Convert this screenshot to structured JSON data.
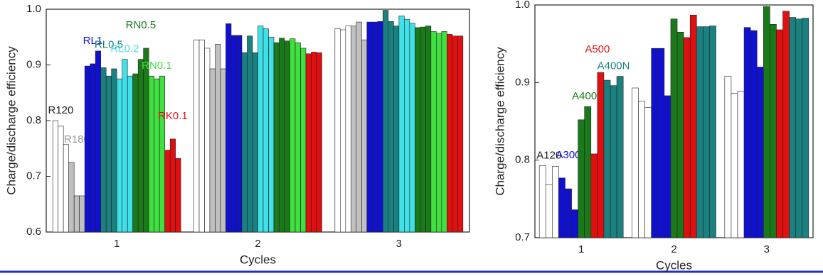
{
  "chart_data": [
    {
      "type": "bar",
      "x_label": "Cycles",
      "y_label": "Charge/discharge efficiency",
      "categories": [
        "1",
        "2",
        "3"
      ],
      "ylim": [
        0.6,
        1.0
      ],
      "yticks": [
        0.6,
        0.7,
        0.8,
        0.9,
        {
          "value": 1.0,
          "label": "1.0"
        }
      ],
      "series": [
        {
          "name": "R120",
          "color": "#ffffff",
          "values": [
            [
              0.8,
              0.79,
              0.757
            ],
            [
              0.945,
              0.945,
              0.93
            ],
            [
              0.965,
              0.963,
              0.97
            ]
          ]
        },
        {
          "name": "R180",
          "color": "#c0c0c0",
          "values": [
            [
              0.725,
              0.665,
              0.665
            ],
            [
              0.893,
              0.937,
              0.893
            ],
            [
              0.97,
              0.977,
              0.945
            ]
          ]
        },
        {
          "name": "RL1",
          "color": "#1010d0",
          "values": [
            [
              0.898,
              0.902,
              0.925
            ],
            [
              0.974,
              0.953,
              0.953
            ],
            [
              0.977,
              0.977,
              0.978
            ]
          ]
        },
        {
          "name": "RL0.5",
          "color": "#1a8080",
          "values": [
            [
              0.895,
              0.88,
              0.893
            ],
            [
              0.922,
              0.952,
              0.922
            ],
            [
              0.998,
              0.978,
              0.97
            ]
          ]
        },
        {
          "name": "RL0.2",
          "color": "#40e0e8",
          "values": [
            [
              0.875,
              0.91,
              0.88
            ],
            [
              0.97,
              0.965,
              0.95
            ],
            [
              0.988,
              0.982,
              0.975
            ]
          ]
        },
        {
          "name": "RN0.5",
          "color": "#1a7a1a",
          "values": [
            [
              0.884,
              0.91,
              0.93
            ],
            [
              0.94,
              0.948,
              0.943
            ],
            [
              0.967,
              0.968,
              0.97
            ]
          ]
        },
        {
          "name": "RN0.1",
          "color": "#40e040",
          "values": [
            [
              0.88,
              0.875,
              0.88
            ],
            [
              0.947,
              0.94,
              0.93
            ],
            [
              0.96,
              0.957,
              0.96
            ]
          ]
        },
        {
          "name": "RK0.1",
          "color": "#e01010",
          "values": [
            [
              0.747,
              0.767,
              0.732
            ],
            [
              0.92,
              0.923,
              0.922
            ],
            [
              0.955,
              0.952,
              0.952
            ]
          ]
        }
      ]
    },
    {
      "type": "bar",
      "x_label": "Cycles",
      "y_label": "Charge/discharge efficiency",
      "categories": [
        "1",
        "2",
        "3"
      ],
      "ylim": [
        0.7,
        1.0
      ],
      "yticks": [
        0.7,
        0.8,
        0.9,
        {
          "value": 1.0,
          "label": "1.0"
        }
      ],
      "series": [
        {
          "name": "A120",
          "color": "#ffffff",
          "values": [
            [
              0.793,
              0.768,
              0.792
            ],
            [
              0.893,
              0.876,
              0.868
            ],
            [
              0.908,
              0.886,
              0.889
            ]
          ]
        },
        {
          "name": "A300",
          "color": "#1010d0",
          "values": [
            [
              0.777,
              0.763,
              0.736
            ],
            [
              0.944,
              0.944,
              0.883
            ],
            [
              0.971,
              0.967,
              0.92
            ]
          ]
        },
        {
          "name": "A400",
          "color": "#1a7a1a",
          "values": [
            [
              0.852,
              0.869
            ],
            [
              0.982,
              0.965
            ],
            [
              0.998,
              0.975
            ]
          ]
        },
        {
          "name": "A500",
          "color": "#e01010",
          "values": [
            [
              0.808,
              0.913
            ],
            [
              0.958,
              0.987
            ],
            [
              0.968,
              0.992
            ]
          ]
        },
        {
          "name": "A400N",
          "color": "#1a8080",
          "values": [
            [
              0.903,
              0.896,
              0.908
            ],
            [
              0.972,
              0.972,
              0.973
            ],
            [
              0.984,
              0.982,
              0.983
            ]
          ]
        }
      ]
    }
  ]
}
